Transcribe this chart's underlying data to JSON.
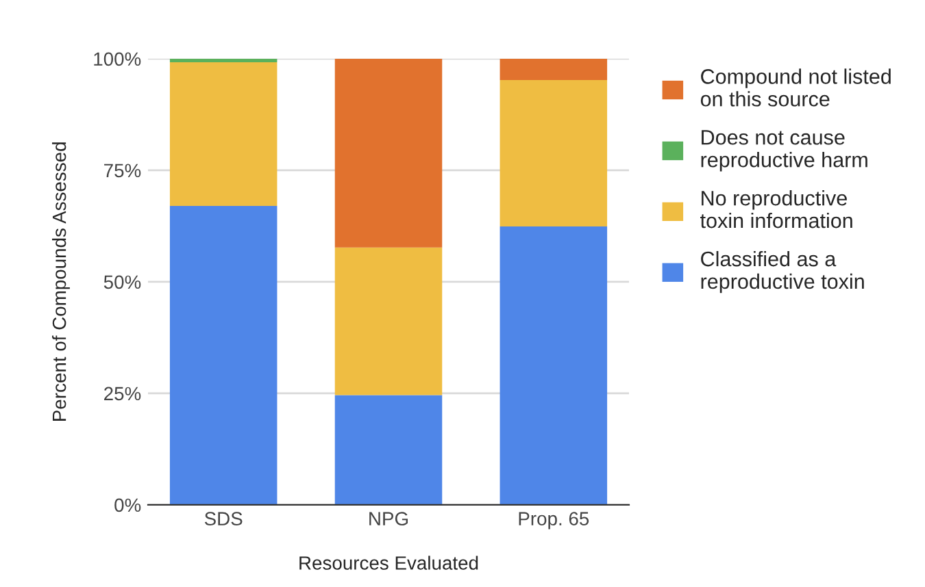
{
  "chart_data": {
    "type": "bar",
    "stacked": true,
    "xlabel": "Resources Evaluated",
    "ylabel": "Percent of Compounds Assessed",
    "categories": [
      "SDS",
      "NPG",
      "Prop. 65"
    ],
    "series": [
      {
        "name": "Classified as a reproductive toxin",
        "color": "#4f86e8",
        "values": [
          67.0,
          24.6,
          62.4
        ]
      },
      {
        "name": "No reproductive toxin information",
        "color": "#efbd42",
        "values": [
          32.2,
          33.1,
          32.8
        ]
      },
      {
        "name": "Does not cause reproductive harm",
        "color": "#5bb15c",
        "values": [
          0.8,
          null,
          null
        ]
      },
      {
        "name": "Compound not listed on this source",
        "color": "#e1722e",
        "values": [
          null,
          42.3,
          4.8
        ]
      }
    ],
    "ylim": [
      0,
      100
    ],
    "yticks": [
      {
        "value": 0,
        "label": "0%"
      },
      {
        "value": 25,
        "label": "25%"
      },
      {
        "value": 50,
        "label": "50%"
      },
      {
        "value": 75,
        "label": "75%"
      },
      {
        "value": 100,
        "label": "100%"
      }
    ],
    "grid": "y",
    "legend": "right"
  }
}
